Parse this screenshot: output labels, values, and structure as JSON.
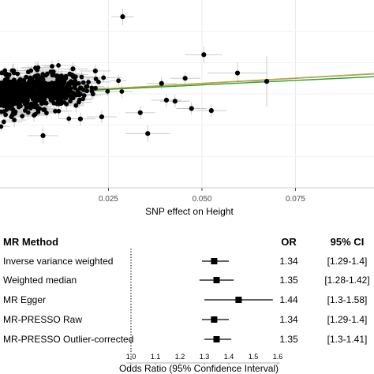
{
  "chart_data": [
    {
      "type": "scatter",
      "xlabel": "SNP effect on Height",
      "x_ticks": [
        "0.025",
        "0.050",
        "0.075"
      ],
      "xlim": [
        -0.004,
        0.096
      ],
      "ylim": [
        -0.045,
        0.045
      ],
      "grid": true,
      "highlighted_points": [
        {
          "x": 0.0288,
          "y": 0.037,
          "ex": 0.003,
          "ey": 0.004
        },
        {
          "x": 0.0505,
          "y": 0.0188,
          "ex": 0.005,
          "ey": 0.004
        },
        {
          "x": 0.0595,
          "y": 0.01,
          "ex": 0.008,
          "ey": 0.005
        },
        {
          "x": 0.0673,
          "y": 0.006,
          "ex": 0.005,
          "ey": 0.012
        },
        {
          "x": 0.0355,
          "y": -0.019,
          "ex": 0.006,
          "ey": 0.004
        },
        {
          "x": 0.0075,
          "y": -0.02,
          "ex": 0.004,
          "ey": 0.004
        },
        {
          "x": 0.0472,
          "y": -0.007,
          "ex": 0.004,
          "ey": 0.003
        },
        {
          "x": 0.0525,
          "y": -0.008,
          "ex": 0.004,
          "ey": 0.003
        },
        {
          "x": 0.0405,
          "y": -0.003,
          "ex": 0.004,
          "ey": 0.003
        },
        {
          "x": 0.0335,
          "y": -0.009,
          "ex": 0.004,
          "ey": 0.003
        },
        {
          "x": 0.0455,
          "y": 0.0075,
          "ex": 0.004,
          "ey": 0.003
        },
        {
          "x": 0.0155,
          "y": 0.012,
          "ex": 0.004,
          "ey": 0.003
        },
        {
          "x": 0.0215,
          "y": 0.011,
          "ex": 0.004,
          "ey": 0.003
        },
        {
          "x": 0.0175,
          "y": -0.012,
          "ex": 0.004,
          "ey": 0.003
        },
        {
          "x": 0.0232,
          "y": -0.011,
          "ex": 0.004,
          "ey": 0.003
        },
        {
          "x": 0.0392,
          "y": 0.005,
          "ex": 0.004,
          "ey": 0.003
        },
        {
          "x": 0.0428,
          "y": -0.0035,
          "ex": 0.004,
          "ey": 0.003
        }
      ],
      "cloud": {
        "n": 650,
        "x_center": 0.004,
        "x_sd": 0.0075,
        "slope": 0.1,
        "y_sd": 0.0045
      },
      "fit_lines": [
        {
          "color": "#4a90d9",
          "slope": 0.1
        },
        {
          "color": "#c9a227",
          "slope": 0.101
        },
        {
          "color": "#2ca02c",
          "slope": 0.086
        }
      ]
    },
    {
      "type": "forest",
      "xlabel": "Odds Ratio (95% Confidence Interval)",
      "x_ticks": [
        "1.0",
        "1.1",
        "1.2",
        "1.3",
        "1.4",
        "1.5",
        "1.6"
      ],
      "xlim": [
        1.0,
        1.6
      ],
      "reference_line": 1.0,
      "header": {
        "method": "MR Method",
        "or": "OR",
        "ci": "95% CI"
      },
      "rows": [
        {
          "method": "Inverse variance weighted",
          "or": 1.34,
          "lo": 1.29,
          "hi": 1.4,
          "or_text": "1.34",
          "ci_text": "[1.29-1.4]"
        },
        {
          "method": "Weighted median",
          "or": 1.35,
          "lo": 1.28,
          "hi": 1.42,
          "or_text": "1.35",
          "ci_text": "[1.28-1.42]"
        },
        {
          "method": "MR Egger",
          "or": 1.44,
          "lo": 1.3,
          "hi": 1.58,
          "or_text": "1.44",
          "ci_text": "[1.3-1.58]"
        },
        {
          "method": "MR-PRESSO Raw",
          "or": 1.34,
          "lo": 1.29,
          "hi": 1.4,
          "or_text": "1.34",
          "ci_text": "[1.29-1.4]"
        },
        {
          "method": "MR-PRESSO Outlier-corrected",
          "or": 1.35,
          "lo": 1.3,
          "hi": 1.41,
          "or_text": "1.35",
          "ci_text": "[1.3-1.41]"
        }
      ]
    }
  ]
}
